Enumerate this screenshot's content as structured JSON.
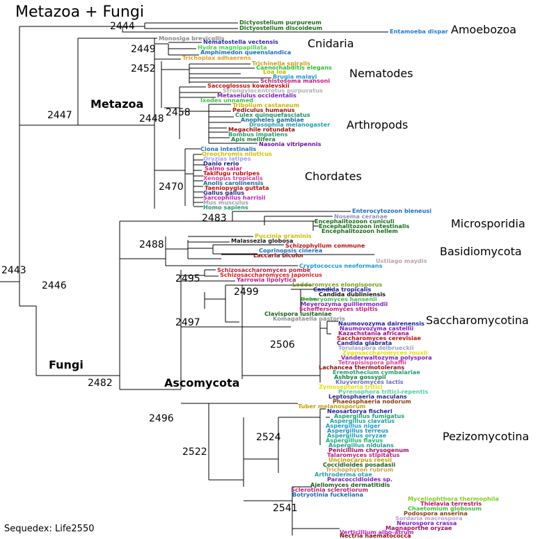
{
  "title": "Metazoa + Fungi",
  "footer": "Sequedex: Life2550",
  "clades": [
    "Amoebozoa",
    "Cnidaria",
    "Nematodes",
    "Metazoa",
    "Arthropods",
    "Chordates",
    "Microsporidia",
    "Basidiomycota",
    "Saccharomycotina",
    "Fungi",
    "Ascomycota",
    "Pezizomycotina"
  ],
  "nodes": [
    "2444",
    "2449",
    "2452",
    "2447",
    "2448",
    "2458",
    "2470",
    "2443",
    "2483",
    "2446",
    "2488",
    "2495",
    "2499",
    "2497",
    "2506",
    "2482",
    "2496",
    "2524",
    "2522",
    "2541"
  ],
  "leaves": [
    {
      "t": "Dictyostelium purpureum",
      "c": "#1a6e1a"
    },
    {
      "t": "Dictyostelium discoideum",
      "c": "#1a6e1a"
    },
    {
      "t": "Entamoeba dispar",
      "c": "#1a7ed6"
    },
    {
      "t": "Monosiga brevicollis",
      "c": "#8a8a8a"
    },
    {
      "t": "Nematostella vectensis",
      "c": "#2a2aa8"
    },
    {
      "t": "Hydra magnipapillata",
      "c": "#4cd14c"
    },
    {
      "t": "Amphimedon queenslandica",
      "c": "#1a6ec0"
    },
    {
      "t": "Trichoplax adhaerens",
      "c": "#d8a030"
    },
    {
      "t": "Trichinella spiralis",
      "c": "#c8a020"
    },
    {
      "t": "Caenorhabditis elegans",
      "c": "#30c030"
    },
    {
      "t": "Loa loa",
      "c": "#c8b400"
    },
    {
      "t": "Brugia malayi",
      "c": "#1aa0c8"
    },
    {
      "t": "Schistosoma mansoni",
      "c": "#c02080"
    },
    {
      "t": "Saccoglossus kowalevskii",
      "c": "#c01010"
    },
    {
      "t": "Strongylocentrotus purpuratus",
      "c": "#b0b0b0"
    },
    {
      "t": "Metaseiulus occidentalis",
      "c": "#8020c0"
    },
    {
      "t": "Ixodes unnamed",
      "c": "#40c040"
    },
    {
      "t": "Tribolium castaneum",
      "c": "#c8b400"
    },
    {
      "t": "Pediculus humanus",
      "c": "#a01010"
    },
    {
      "t": "Culex quinquefasciatus",
      "c": "#209060"
    },
    {
      "t": "Anopheles gambiae",
      "c": "#1a6e9a"
    },
    {
      "t": "Drosophila melanogaster",
      "c": "#20a0b0"
    },
    {
      "t": "Megachile rotundata",
      "c": "#a01010"
    },
    {
      "t": "Bombus impatiens",
      "c": "#20a070"
    },
    {
      "t": "Apis mellifera",
      "c": "#208040"
    },
    {
      "t": "Nasonia vitripennis",
      "c": "#7010a0"
    },
    {
      "t": "Ciona intestinalis",
      "c": "#1a6ec0"
    },
    {
      "t": "Oreochromis niloticus",
      "c": "#d0c000"
    },
    {
      "t": "Oryzias latipes",
      "c": "#a0a0ff"
    },
    {
      "t": "Danio rerio",
      "c": "#1a1a80"
    },
    {
      "t": "Salmo salar",
      "c": "#e02080"
    },
    {
      "t": "Takifugu rubripes",
      "c": "#c01010"
    },
    {
      "t": "Xenopus tropicalis",
      "c": "#e040a0"
    },
    {
      "t": "Anolis carolinensis",
      "c": "#1a6e9a"
    },
    {
      "t": "Taeniopygia guttata",
      "c": "#c01010"
    },
    {
      "t": "Gallus gallus",
      "c": "#2a2a80"
    },
    {
      "t": "Sarcophilus harrisii",
      "c": "#c020c0"
    },
    {
      "t": "Mus musculus",
      "c": "#a0a0a0"
    },
    {
      "t": "Homo sapiens",
      "c": "#20a070"
    },
    {
      "t": "Enterocytozoon bieneusi",
      "c": "#1a6ec0"
    },
    {
      "t": "Nosema ceranae",
      "c": "#9090c0"
    },
    {
      "t": "Encephalitozoon cuniculi",
      "c": "#1a6e1a"
    },
    {
      "t": "Encephalitozoon intestinalis",
      "c": "#1a6e1a"
    },
    {
      "t": "Encephalitozoon hellem",
      "c": "#1a6e1a"
    },
    {
      "t": "Puccinia graminis",
      "c": "#c8c000"
    },
    {
      "t": "Malassezia globosa",
      "c": "#1a1a1a"
    },
    {
      "t": "Schizophyllum commune",
      "c": "#c01010"
    },
    {
      "t": "Coprinopsis cinerea",
      "c": "#1a6ec0"
    },
    {
      "t": "Laccaria bicolor",
      "c": "#8a1010"
    },
    {
      "t": "Ustilago maydis",
      "c": "#c0a0b0"
    },
    {
      "t": "Cryptococcus neoformans",
      "c": "#1a9ad6"
    },
    {
      "t": "Schizosaccharomyces pombe",
      "c": "#c02040"
    },
    {
      "t": "Schizosaccharomyces japonicus",
      "c": "#e02020"
    },
    {
      "t": "Yarrowia lipolytica",
      "c": "#c02080"
    },
    {
      "t": "Lodderomyces elongisporus",
      "c": "#80a020"
    },
    {
      "t": "Candida tropicalis",
      "c": "#2020a0"
    },
    {
      "t": "Candida dubliniensis",
      "c": "#101010"
    },
    {
      "t": "Debaryomyces hansenii",
      "c": "#40c040"
    },
    {
      "t": "Meyerozyma guilliermondii",
      "c": "#8020c0"
    },
    {
      "t": "Scheffersomyces stipitis",
      "c": "#c02080"
    },
    {
      "t": "Clavispora lusitaniae",
      "c": "#206020"
    },
    {
      "t": "Komagataella pastoris",
      "c": "#909090"
    },
    {
      "t": "Naumovozyma dairenensis",
      "c": "#2020a0"
    },
    {
      "t": "Naumovozyma castellii",
      "c": "#8020c0"
    },
    {
      "t": "Kazachstania africana",
      "c": "#a01080"
    },
    {
      "t": "Saccharomyces cerevisiae",
      "c": "#c01010"
    },
    {
      "t": "Candida glabrata",
      "c": "#2020a0"
    },
    {
      "t": "Torulaspora delbrueckii",
      "c": "#a0a0c0"
    },
    {
      "t": "Zygosaccharomyces rouxii",
      "c": "#e0e000"
    },
    {
      "t": "Vanderwaltozyma polyspora",
      "c": "#8020c0"
    },
    {
      "t": "Tetrapisispora phaffii",
      "c": "#e040a0"
    },
    {
      "t": "Lachancea thermotolerans",
      "c": "#8a1010"
    },
    {
      "t": "Eremothecium cymbalariae",
      "c": "#20a070"
    },
    {
      "t": "Ashbya gossypii",
      "c": "#208040"
    },
    {
      "t": "Kluyveromyces lactis",
      "c": "#6a6ad0"
    },
    {
      "t": "Zymoseptoria tritici",
      "c": "#e0e000"
    },
    {
      "t": "Pyrenophora tritici-repentis",
      "c": "#50d0a0"
    },
    {
      "t": "Leptosphaeria maculans",
      "c": "#2a2a80"
    },
    {
      "t": "Phaeosphaeria nodorum",
      "c": "#8a4010"
    },
    {
      "t": "Tuber melanosporum",
      "c": "#c8a000"
    },
    {
      "t": "Neosartorya fischeri",
      "c": "#2020a0"
    },
    {
      "t": "Aspergillus fumigatus",
      "c": "#20a070"
    },
    {
      "t": "Aspergillus clavatus",
      "c": "#20a0a0"
    },
    {
      "t": "Aspergillus niger",
      "c": "#1aa0c8"
    },
    {
      "t": "Aspergillus terreus",
      "c": "#1a90d0"
    },
    {
      "t": "Aspergillus oryzae",
      "c": "#20a0b0"
    },
    {
      "t": "Aspergillus flavus",
      "c": "#20b070"
    },
    {
      "t": "Aspergillus nidulans",
      "c": "#20a090"
    },
    {
      "t": "Penicillium chrysogenum",
      "c": "#a01060"
    },
    {
      "t": "Talaromyces stipitatus",
      "c": "#c02080"
    },
    {
      "t": "Uncinocarpus reesii",
      "c": "#c0a000"
    },
    {
      "t": "Coccidioides posadasii",
      "c": "#206020"
    },
    {
      "t": "Trichophyton rubrum",
      "c": "#d0a040"
    },
    {
      "t": "Arthroderma otae",
      "c": "#20a0b0"
    },
    {
      "t": "Paracoccidioides sp.",
      "c": "#8020c0"
    },
    {
      "t": "Ajellomyces dermatitidis",
      "c": "#206020"
    },
    {
      "t": "Sclerotinia sclerotiorum",
      "c": "#c02080"
    },
    {
      "t": "Botryotinia fuckeliana",
      "c": "#1a6ec0"
    },
    {
      "t": "Myceliophthora thermophila",
      "c": "#80d020"
    },
    {
      "t": "Thielavia terrestris",
      "c": "#c01060"
    },
    {
      "t": "Chaetomium globosum",
      "c": "#40c040"
    },
    {
      "t": "Podospora anserina",
      "c": "#8a4010"
    },
    {
      "t": "Sordaria macrospora",
      "c": "#c0a0d0"
    },
    {
      "t": "Neurospora crassa",
      "c": "#8020c0"
    },
    {
      "t": "Magnaporthe oryzae",
      "c": "#a01060"
    },
    {
      "t": "Verticillium albo-atrum",
      "c": "#c020c0"
    },
    {
      "t": "Nectria haematococca",
      "c": "#8a1010"
    }
  ]
}
